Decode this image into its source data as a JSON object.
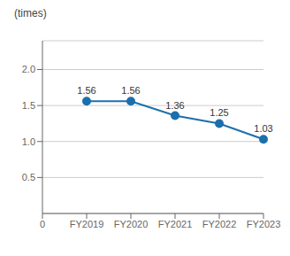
{
  "chart_data": {
    "type": "line",
    "y_label": "(times)",
    "categories": [
      "0",
      "FY2019",
      "FY2020",
      "FY2021",
      "FY2022",
      "FY2023"
    ],
    "values": [
      null,
      1.56,
      1.56,
      1.36,
      1.25,
      1.03
    ],
    "color": "#1c6fad",
    "marker": "circle",
    "ylim": [
      0,
      2.4
    ],
    "yticks": [
      0.5,
      {
        "value": 1,
        "label": "1.0"
      },
      1.5,
      {
        "value": 2,
        "label": "2.0"
      }
    ],
    "grid": true,
    "data_labels": true
  }
}
